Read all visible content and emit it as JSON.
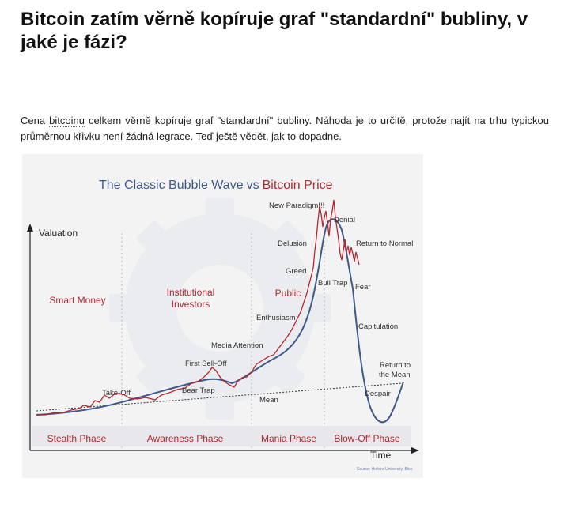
{
  "article": {
    "headline": "Bitcoin zatím věrně kopíruje graf \"standardní\" bubliny, v jaké je fázi?",
    "para_prefix": " Cena ",
    "para_link": "bitcoinu",
    "para_rest": " celkem věrně kopíruje graf \"standardní\" bubliny. Náhoda je to určitě, protože najít na trhu typickou průměrnou křivku není žádná legrace. Teď ještě vědět, jak to dopadne."
  },
  "figure": {
    "title_part1": "The Classic Bubble Wave",
    "title_vs": "vs",
    "title_part2": "Bitcoin Price",
    "y_axis_label": "Valuation",
    "x_axis_label": "Time",
    "source": "Source: Hofstra University, Bloo",
    "phases": [
      "Stealth Phase",
      "Awareness Phase",
      "Mania Phase",
      "Blow-Off Phase"
    ],
    "phase_labels": {
      "smart_money": "Smart Money",
      "institutional": "Institutional\nInvestors",
      "public": "Public"
    },
    "annotations": {
      "take_off": "Take-Off",
      "first_sell_off": "First Sell-Off",
      "bear_trap": "Bear Trap",
      "media_attention": "Media Attention",
      "enthusiasm": "Enthusiasm",
      "greed": "Greed",
      "delusion": "Delusion",
      "new_paradigm": "New Paradigm!!!",
      "denial": "Denial",
      "return_to_normal": "Return to Normal",
      "bull_trap": "Bull Trap",
      "fear": "Fear",
      "capitulation": "Capitulation",
      "despair": "Despair",
      "return_to_mean_1": "Return to",
      "return_to_mean_2": "the Mean",
      "mean": "Mean"
    },
    "colors": {
      "wave": "#3f5a8a",
      "bitcoin": "#b3272f",
      "title_blue": "#3f5a8a",
      "title_red": "#b3272f",
      "phase_red": "#b3272f",
      "band": "#e8e8ec"
    }
  }
}
